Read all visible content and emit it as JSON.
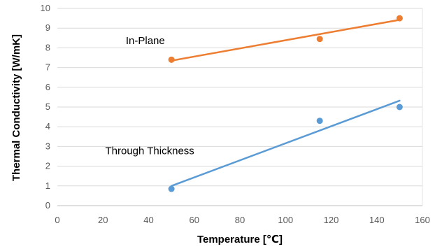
{
  "chart_data": {
    "type": "scatter",
    "xlabel": "Temperature [℃]",
    "ylabel": "Thermal Conductivity [W/mK]",
    "xlim": [
      0,
      160
    ],
    "ylim": [
      0,
      10
    ],
    "x_ticks": [
      0,
      20,
      40,
      60,
      80,
      100,
      120,
      140,
      160
    ],
    "y_ticks": [
      0,
      1,
      2,
      3,
      4,
      5,
      6,
      7,
      8,
      9,
      10
    ],
    "grid": "horizontal",
    "series": [
      {
        "name": "In-Plane",
        "color": "#ED7D31",
        "points": [
          {
            "x": 50,
            "y": 7.4
          },
          {
            "x": 115,
            "y": 8.45
          },
          {
            "x": 150,
            "y": 9.5
          }
        ],
        "trendline": {
          "x": [
            50,
            150
          ],
          "y": [
            7.35,
            9.42
          ]
        }
      },
      {
        "name": "Through Thickness",
        "color": "#5B9BD5",
        "points": [
          {
            "x": 50,
            "y": 0.85
          },
          {
            "x": 115,
            "y": 4.3
          },
          {
            "x": 150,
            "y": 5.0
          }
        ],
        "trendline": {
          "x": [
            50,
            150
          ],
          "y": [
            1.0,
            5.32
          ]
        }
      }
    ],
    "annotations": [
      {
        "text": "In-Plane",
        "x": 30,
        "y": 8.2
      },
      {
        "text": "Through Thickness",
        "x": 21,
        "y": 2.6
      }
    ]
  }
}
